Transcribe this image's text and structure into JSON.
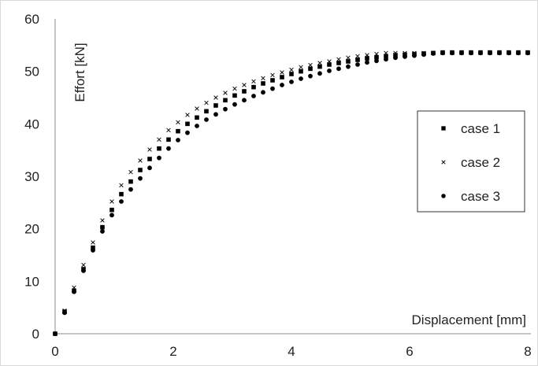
{
  "chart_data": {
    "type": "scatter",
    "title": "",
    "xlabel": "Displacement [mm]",
    "ylabel": "Effort [kN]",
    "xlim": [
      0,
      8
    ],
    "ylim": [
      0,
      60
    ],
    "x_ticks": [
      "0",
      "2",
      "4",
      "6",
      "8"
    ],
    "y_ticks": [
      "0",
      "10",
      "20",
      "30",
      "40",
      "50",
      "60"
    ],
    "grid": false,
    "legend_position": "right",
    "series": [
      {
        "name": "case 1",
        "marker": "square",
        "x": [
          0,
          0.16,
          0.32,
          0.48,
          0.64,
          0.8,
          0.96,
          1.12,
          1.28,
          1.44,
          1.6,
          1.76,
          1.92,
          2.08,
          2.24,
          2.4,
          2.56,
          2.72,
          2.88,
          3.04,
          3.2,
          3.36,
          3.52,
          3.68,
          3.84,
          4.0,
          4.16,
          4.32,
          4.48,
          4.64,
          4.8,
          4.96,
          5.12,
          5.28,
          5.44,
          5.6,
          5.76,
          5.92,
          6.08,
          6.24,
          6.4,
          6.56,
          6.72,
          6.88,
          7.04,
          7.2,
          7.36,
          7.52,
          7.68,
          7.84,
          8.0
        ],
        "y": [
          0,
          4.2,
          8.2,
          12.3,
          16.4,
          20.3,
          23.6,
          26.6,
          29.0,
          31.2,
          33.3,
          35.3,
          37.0,
          38.6,
          40.0,
          41.2,
          42.4,
          43.5,
          44.5,
          45.4,
          46.2,
          47.0,
          47.7,
          48.3,
          48.9,
          49.5,
          50.0,
          50.5,
          50.9,
          51.3,
          51.6,
          51.9,
          52.2,
          52.5,
          52.7,
          52.9,
          53.1,
          53.2,
          53.3,
          53.4,
          53.5,
          53.6,
          53.6,
          53.6,
          53.6,
          53.6,
          53.6,
          53.6,
          53.6,
          53.6,
          53.6
        ]
      },
      {
        "name": "case 2",
        "marker": "x",
        "x": [
          0,
          0.16,
          0.32,
          0.48,
          0.64,
          0.8,
          0.96,
          1.12,
          1.28,
          1.44,
          1.6,
          1.76,
          1.92,
          2.08,
          2.24,
          2.4,
          2.56,
          2.72,
          2.88,
          3.04,
          3.2,
          3.36,
          3.52,
          3.68,
          3.84,
          4.0,
          4.16,
          4.32,
          4.48,
          4.64,
          4.8,
          4.96,
          5.12,
          5.28,
          5.44,
          5.6,
          5.76,
          5.92,
          6.08,
          6.24,
          6.4,
          6.56,
          6.72,
          6.88,
          7.04,
          7.2,
          7.36,
          7.52,
          7.68,
          7.84,
          8.0
        ],
        "y": [
          0,
          4.4,
          8.8,
          13.1,
          17.4,
          21.6,
          25.2,
          28.3,
          30.8,
          33.0,
          35.1,
          37.0,
          38.8,
          40.3,
          41.7,
          42.9,
          44.0,
          45.0,
          45.9,
          46.7,
          47.4,
          48.1,
          48.7,
          49.3,
          49.8,
          50.3,
          50.8,
          51.2,
          51.6,
          51.9,
          52.3,
          52.6,
          52.9,
          53.1,
          53.3,
          53.5,
          53.5,
          53.5,
          53.5,
          53.5,
          53.5,
          53.5,
          53.5,
          53.5,
          53.5,
          53.5,
          53.5,
          53.5,
          53.5,
          53.5,
          53.5
        ]
      },
      {
        "name": "case 3",
        "marker": "circle",
        "x": [
          0,
          0.16,
          0.32,
          0.48,
          0.64,
          0.8,
          0.96,
          1.12,
          1.28,
          1.44,
          1.6,
          1.76,
          1.92,
          2.08,
          2.24,
          2.4,
          2.56,
          2.72,
          2.88,
          3.04,
          3.2,
          3.36,
          3.52,
          3.68,
          3.84,
          4.0,
          4.16,
          4.32,
          4.48,
          4.64,
          4.8,
          4.96,
          5.12,
          5.28,
          5.44,
          5.6,
          5.76,
          5.92,
          6.08,
          6.24,
          6.4,
          6.56,
          6.72,
          6.88,
          7.04,
          7.2,
          7.36,
          7.52,
          7.68,
          7.84,
          8.0
        ],
        "y": [
          0,
          4.0,
          8.0,
          12.0,
          15.9,
          19.5,
          22.6,
          25.2,
          27.5,
          29.6,
          31.6,
          33.5,
          35.3,
          36.9,
          38.3,
          39.6,
          40.8,
          41.8,
          42.8,
          43.7,
          44.5,
          45.3,
          46.0,
          46.7,
          47.4,
          48.0,
          48.6,
          49.1,
          49.6,
          50.1,
          50.5,
          50.9,
          51.3,
          51.7,
          52.0,
          52.3,
          52.6,
          52.8,
          53.0,
          53.2,
          53.4,
          53.5,
          53.5,
          53.5,
          53.5,
          53.5,
          53.5,
          53.5,
          53.5,
          53.5,
          53.5
        ]
      }
    ]
  }
}
